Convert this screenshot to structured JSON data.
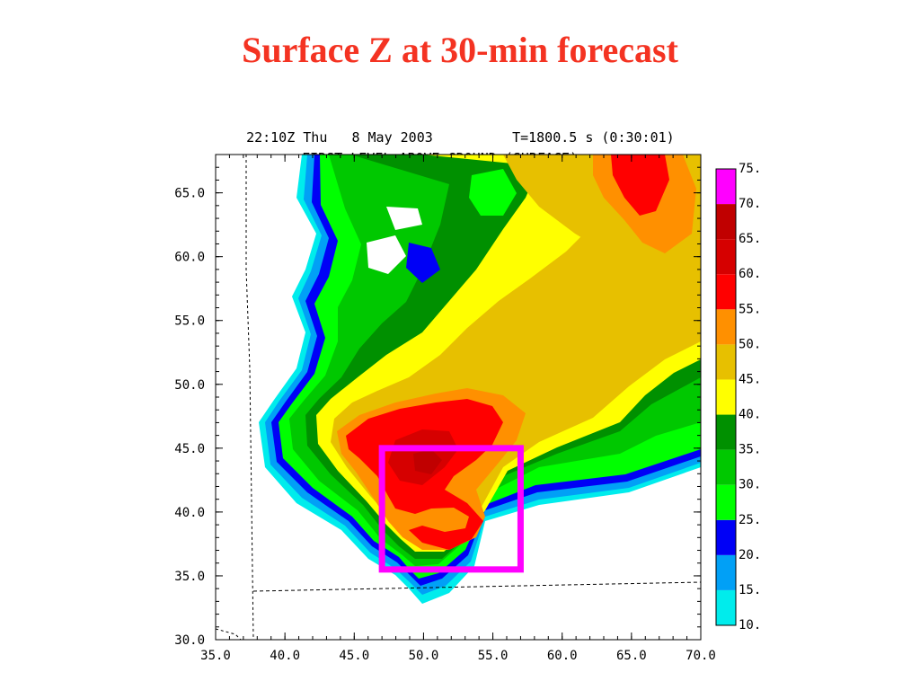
{
  "slide": {
    "title": "Surface Z at 30-min forecast"
  },
  "chart_data": {
    "type": "heatmap",
    "header_line1_left": "22:10Z Thu   8 May 2003",
    "header_line1_right": "T=1800.5 s (0:30:01)",
    "header_line2": "FIRST LEVEL ABOVE GROUND (SURFACE)",
    "xlim": [
      35.0,
      70.0
    ],
    "ylim": [
      30.0,
      68.0
    ],
    "x_ticks": [
      "35.0",
      "40.0",
      "45.0",
      "50.0",
      "55.0",
      "60.0",
      "65.0",
      "70.0"
    ],
    "y_ticks": [
      "30.0",
      "35.0",
      "40.0",
      "45.0",
      "50.0",
      "55.0",
      "60.0",
      "65.0"
    ],
    "colorbar": {
      "levels": [
        "10.",
        "15.",
        "20.",
        "25.",
        "30.",
        "35.",
        "40.",
        "45.",
        "50.",
        "55.",
        "60.",
        "65.",
        "70.",
        "75."
      ],
      "colors": [
        "#00ecec",
        "#01a0f6",
        "#0000f6",
        "#00ff00",
        "#00c800",
        "#009000",
        "#ffff00",
        "#e7c000",
        "#ff9000",
        "#ff0000",
        "#d60000",
        "#c00000",
        "#ff00ff"
      ]
    },
    "highlight_box": {
      "x": [
        47.0,
        57.0
      ],
      "y": [
        35.5,
        45.0
      ],
      "color": "#ff00ff"
    }
  }
}
